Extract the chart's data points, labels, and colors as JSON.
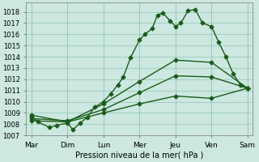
{
  "xlabel": "Pression niveau de la mer( hPa )",
  "xtick_labels": [
    "Mar",
    "Dim",
    "Lun",
    "Mer",
    "Jeu",
    "Ven",
    "Sam"
  ],
  "ylim": [
    1007,
    1018.8
  ],
  "ytick_min": 1007,
  "ytick_max": 1018,
  "background_color": "#cce8e0",
  "grid_color": "#99ccbb",
  "line_color": "#1a5c1a",
  "lines": [
    {
      "x": [
        0,
        0.18,
        0.5,
        0.7,
        1.0,
        1.15,
        1.35,
        1.55,
        1.75,
        2.0,
        2.2,
        2.4,
        2.55,
        2.75,
        3.0,
        3.15,
        3.35,
        3.5,
        3.65,
        3.85,
        4.0,
        4.15,
        4.35,
        4.55,
        4.75,
        5.0,
        5.2,
        5.4,
        5.6,
        5.8,
        6.0
      ],
      "y": [
        1008.7,
        1008.2,
        1007.7,
        1007.9,
        1008.1,
        1007.5,
        1008.1,
        1008.6,
        1009.5,
        1010.0,
        1010.7,
        1011.5,
        1012.2,
        1013.9,
        1015.5,
        1016.0,
        1016.5,
        1017.7,
        1017.9,
        1017.2,
        1016.7,
        1017.0,
        1018.1,
        1018.2,
        1017.0,
        1016.7,
        1015.3,
        1014.0,
        1012.5,
        1011.5,
        1011.2
      ],
      "marker": "D",
      "linestyle": "-",
      "linewidth": 1.0,
      "markersize": 2.5
    },
    {
      "x": [
        0,
        1,
        2,
        3,
        4,
        5,
        6
      ],
      "y": [
        1008.8,
        1008.2,
        1009.8,
        1011.8,
        1013.7,
        1013.5,
        1011.2
      ],
      "marker": "D",
      "linestyle": "-",
      "linewidth": 1.0,
      "markersize": 2.5
    },
    {
      "x": [
        0,
        1,
        2,
        3,
        4,
        5,
        6
      ],
      "y": [
        1008.5,
        1008.3,
        1009.3,
        1010.8,
        1012.3,
        1012.2,
        1011.2
      ],
      "marker": "D",
      "linestyle": "-",
      "linewidth": 1.0,
      "markersize": 2.5
    },
    {
      "x": [
        0,
        1,
        2,
        3,
        4,
        5,
        6
      ],
      "y": [
        1008.3,
        1008.2,
        1009.0,
        1009.8,
        1010.5,
        1010.3,
        1011.2
      ],
      "marker": "D",
      "linestyle": "-",
      "linewidth": 1.0,
      "markersize": 2.5
    }
  ]
}
